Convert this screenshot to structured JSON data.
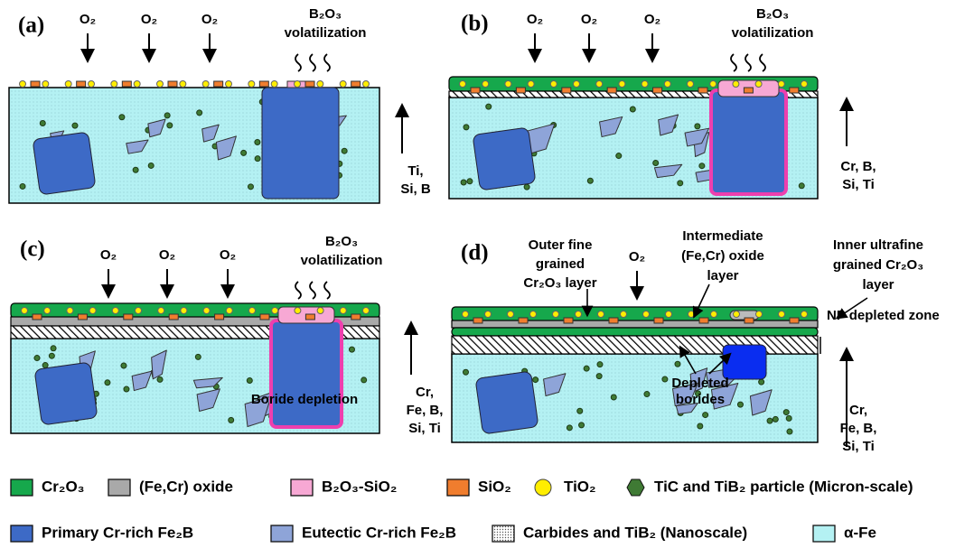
{
  "panels": [
    {
      "label": "(a)",
      "oxygen": [
        "O₂",
        "O₂",
        "O₂"
      ],
      "volatilization": [
        "B₂O₃",
        "volatilization"
      ],
      "diffusion": [
        "Ti,",
        "Si, B"
      ]
    },
    {
      "label": "(b)",
      "oxygen": [
        "O₂",
        "O₂",
        "O₂"
      ],
      "volatilization": [
        "B₂O₃",
        "volatilization"
      ],
      "diffusion": [
        "Cr, B,",
        "Si, Ti"
      ]
    },
    {
      "label": "(c)",
      "oxygen": [
        "O₂",
        "O₂",
        "O₂"
      ],
      "volatilization": [
        "B₂O₃",
        "volatilization"
      ],
      "diffusion": [
        "Cr,",
        "Fe, B,",
        "Si, Ti"
      ],
      "annotation": "Boride depletion"
    },
    {
      "label": "(d)",
      "oxygen": [
        "O₂"
      ],
      "diffusion": [
        "Cr,",
        "Fe, B,",
        "Si, Ti"
      ],
      "annotations": {
        "outer": [
          "Outer fine",
          "grained",
          "Cr₂O₃ layer"
        ],
        "intermediate": [
          "Intermediate",
          "(Fe,Cr) oxide",
          "layer"
        ],
        "inner": [
          "Inner ultrafine",
          "grained Cr₂O₃",
          "layer"
        ],
        "np": "NP depleted zone",
        "depleted": [
          "Depleted",
          "borides"
        ]
      }
    }
  ],
  "legend": [
    "Cr₂O₃",
    "(Fe,Cr) oxide",
    "B₂O₃-SiO₂",
    "SiO₂",
    "TiO₂",
    "TiC and TiB₂ particle (Micron-scale)",
    "Primary Cr-rich Fe₂B",
    "Eutectic Cr-rich Fe₂B",
    "Carbides and TiB₂ (Nanoscale)",
    "α-Fe"
  ]
}
